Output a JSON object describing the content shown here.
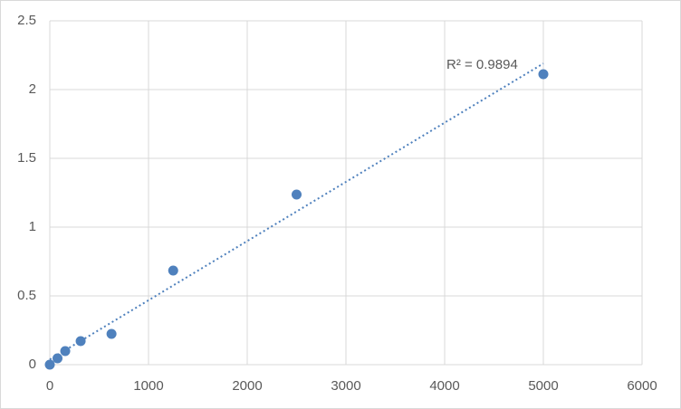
{
  "chart_data": {
    "type": "scatter",
    "annotation": "R² = 0.9894",
    "x": [
      0,
      78.125,
      156.25,
      312.5,
      625,
      1250,
      2500,
      5000
    ],
    "values": [
      0,
      0.046,
      0.099,
      0.171,
      0.224,
      0.684,
      1.237,
      2.112
    ],
    "color": "#4f81bd",
    "trendline": "linear",
    "xlim": [
      0,
      6000
    ],
    "xticks": [
      0,
      1000,
      2000,
      3000,
      4000,
      5000,
      6000
    ],
    "ylim": [
      0,
      2.5
    ],
    "yticks": [
      0,
      0.5,
      1,
      1.5,
      2,
      2.5
    ],
    "grid": true
  }
}
